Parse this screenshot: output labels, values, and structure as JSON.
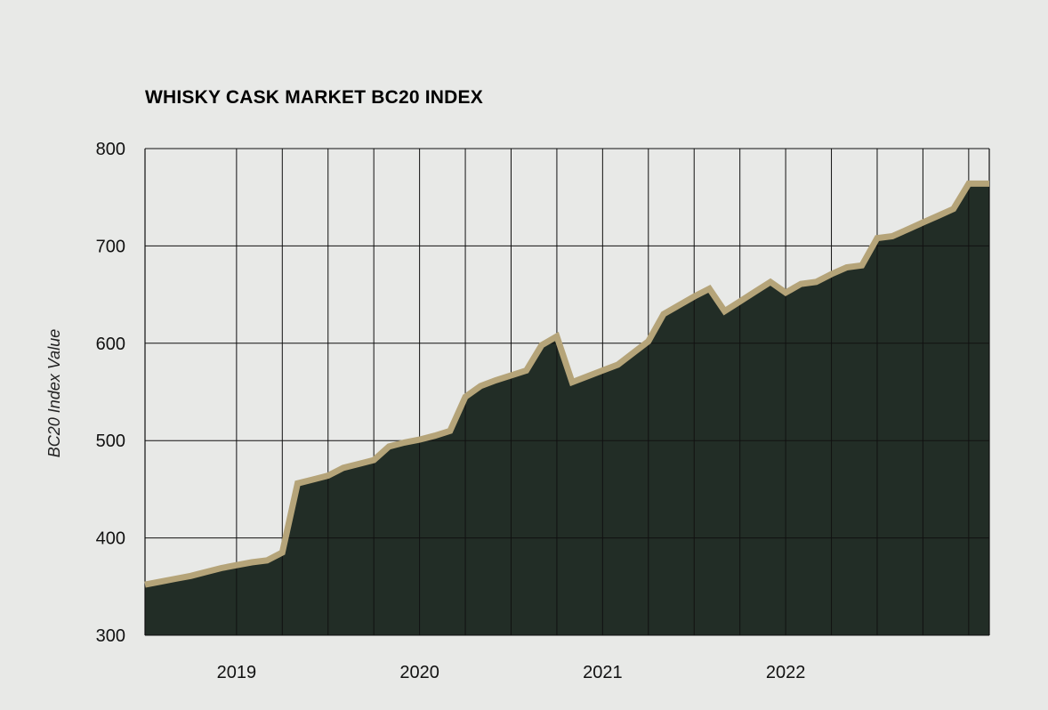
{
  "chart_data": {
    "type": "area",
    "title": "WHISKY CASK MARKET BC20 INDEX",
    "xlabel": "",
    "ylabel": "BC20 Index Value",
    "ylim": [
      300,
      800
    ],
    "y_ticks": [
      "300",
      "400",
      "500",
      "600",
      "700",
      "800"
    ],
    "x_ticks": [
      "2019",
      "2020",
      "2021",
      "2022"
    ],
    "x_tick_dates": [
      "2019-01",
      "2020-01",
      "2021-01",
      "2022-01"
    ],
    "grid": true,
    "colors": {
      "area": "#222d26",
      "line": "#b5a479",
      "grid": "#111111",
      "background": "#e8e9e7"
    },
    "series": [
      {
        "name": "",
        "points": [
          [
            "2018-07",
            352
          ],
          [
            "2018-08",
            355
          ],
          [
            "2018-09",
            358
          ],
          [
            "2018-10",
            361
          ],
          [
            "2018-11",
            365
          ],
          [
            "2018-12",
            369
          ],
          [
            "2019-01",
            372
          ],
          [
            "2019-02",
            375
          ],
          [
            "2019-03",
            377
          ],
          [
            "2019-04",
            385
          ],
          [
            "2019-05",
            456
          ],
          [
            "2019-06",
            460
          ],
          [
            "2019-07",
            464
          ],
          [
            "2019-08",
            472
          ],
          [
            "2019-09",
            476
          ],
          [
            "2019-10",
            480
          ],
          [
            "2019-11",
            494
          ],
          [
            "2019-12",
            498
          ],
          [
            "2020-01",
            501
          ],
          [
            "2020-02",
            505
          ],
          [
            "2020-03",
            510
          ],
          [
            "2020-04",
            545
          ],
          [
            "2020-05",
            556
          ],
          [
            "2020-06",
            562
          ],
          [
            "2020-07",
            567
          ],
          [
            "2020-08",
            572
          ],
          [
            "2020-09",
            598
          ],
          [
            "2020-10",
            607
          ],
          [
            "2020-11",
            560
          ],
          [
            "2020-12",
            566
          ],
          [
            "2021-01",
            572
          ],
          [
            "2021-02",
            578
          ],
          [
            "2021-03",
            590
          ],
          [
            "2021-04",
            602
          ],
          [
            "2021-05",
            630
          ],
          [
            "2021-06",
            639
          ],
          [
            "2021-07",
            648
          ],
          [
            "2021-08",
            656
          ],
          [
            "2021-09",
            633
          ],
          [
            "2021-10",
            643
          ],
          [
            "2021-11",
            653
          ],
          [
            "2021-12",
            663
          ],
          [
            "2022-01",
            652
          ],
          [
            "2022-02",
            661
          ],
          [
            "2022-03",
            663
          ],
          [
            "2022-04",
            671
          ],
          [
            "2022-05",
            678
          ],
          [
            "2022-06",
            680
          ],
          [
            "2022-07",
            708
          ],
          [
            "2022-08",
            710
          ],
          [
            "2022-09",
            717
          ],
          [
            "2022-10",
            724
          ],
          [
            "2022-11",
            731
          ],
          [
            "2022-12",
            738
          ],
          [
            "2023-01",
            764
          ],
          [
            "2023-02",
            764
          ]
        ]
      }
    ]
  }
}
